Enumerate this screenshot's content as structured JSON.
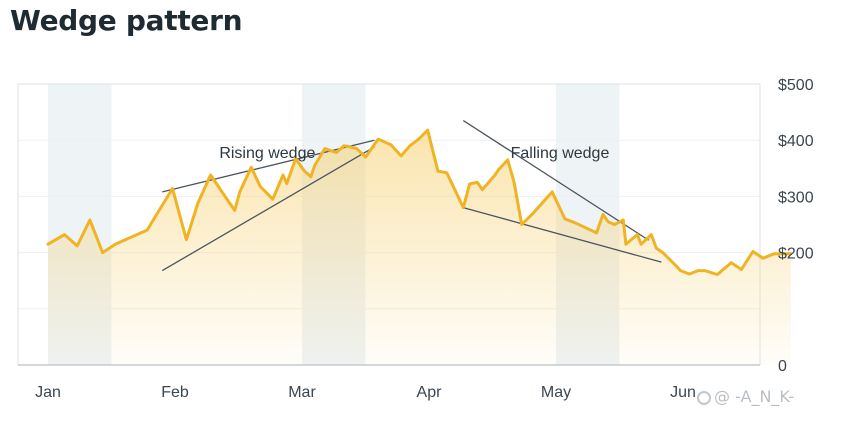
{
  "chart_data": {
    "type": "line",
    "title": "Wedge pattern",
    "x_ticks": [
      "Jan",
      "Feb",
      "Mar",
      "Apr",
      "May",
      "Jun"
    ],
    "y_ticks": [
      "$500",
      "$400",
      "$300",
      "$200",
      "0"
    ],
    "ylim": [
      0,
      500
    ],
    "xlim": [
      0,
      5.85
    ],
    "grid": true,
    "y_axis_position": "right",
    "colors": {
      "line": "#f0b323",
      "fill": "#f7cf6b",
      "band": "#eef3f6",
      "wedge_line": "#4a5560"
    },
    "series": [
      {
        "x": [
          0.0,
          0.13,
          0.23,
          0.33,
          0.43,
          0.53,
          0.78,
          0.98,
          1.09,
          1.18,
          1.28,
          1.4,
          1.47,
          1.51,
          1.6,
          1.67,
          1.77,
          1.85,
          1.88,
          1.95,
          2.02,
          2.07,
          2.1,
          2.18,
          2.27,
          2.33,
          2.38,
          2.43,
          2.5,
          2.6,
          2.7,
          2.78,
          2.85,
          2.92,
          2.99,
          3.07,
          3.14,
          3.27,
          3.32,
          3.38,
          3.42,
          3.52,
          3.55,
          3.62,
          3.67,
          3.73,
          3.82,
          3.93,
          3.97,
          4.07,
          4.15,
          4.32,
          4.37,
          4.41,
          4.46,
          4.53,
          4.55,
          4.64,
          4.67,
          4.75,
          4.79,
          4.84,
          4.93,
          4.98,
          5.05,
          5.12,
          5.17,
          5.27,
          5.38,
          5.46,
          5.55,
          5.63,
          5.72,
          5.78,
          5.85
        ],
        "values": [
          215,
          232,
          212,
          258,
          200,
          215,
          240,
          314,
          223,
          288,
          338,
          298,
          275,
          308,
          352,
          318,
          295,
          338,
          323,
          367,
          345,
          335,
          355,
          385,
          378,
          390,
          388,
          385,
          370,
          402,
          392,
          372,
          390,
          402,
          418,
          345,
          342,
          280,
          322,
          325,
          312,
          338,
          348,
          365,
          325,
          250,
          270,
          298,
          308,
          260,
          253,
          235,
          268,
          255,
          250,
          258,
          215,
          232,
          215,
          232,
          208,
          200,
          180,
          168,
          162,
          168,
          168,
          161,
          182,
          170,
          202,
          190,
          198,
          198,
          198
        ]
      }
    ],
    "annotations": [
      {
        "label": "Rising wedge",
        "upper": [
          [
            0.9,
            308
          ],
          [
            2.57,
            400
          ]
        ],
        "lower": [
          [
            0.9,
            168
          ],
          [
            2.57,
            388
          ]
        ]
      },
      {
        "label": "Falling wedge",
        "upper": [
          [
            3.27,
            435
          ],
          [
            4.73,
            222
          ]
        ],
        "lower": [
          [
            3.27,
            280
          ],
          [
            4.83,
            183
          ]
        ]
      }
    ]
  },
  "watermark": "@ -A_N_K-"
}
